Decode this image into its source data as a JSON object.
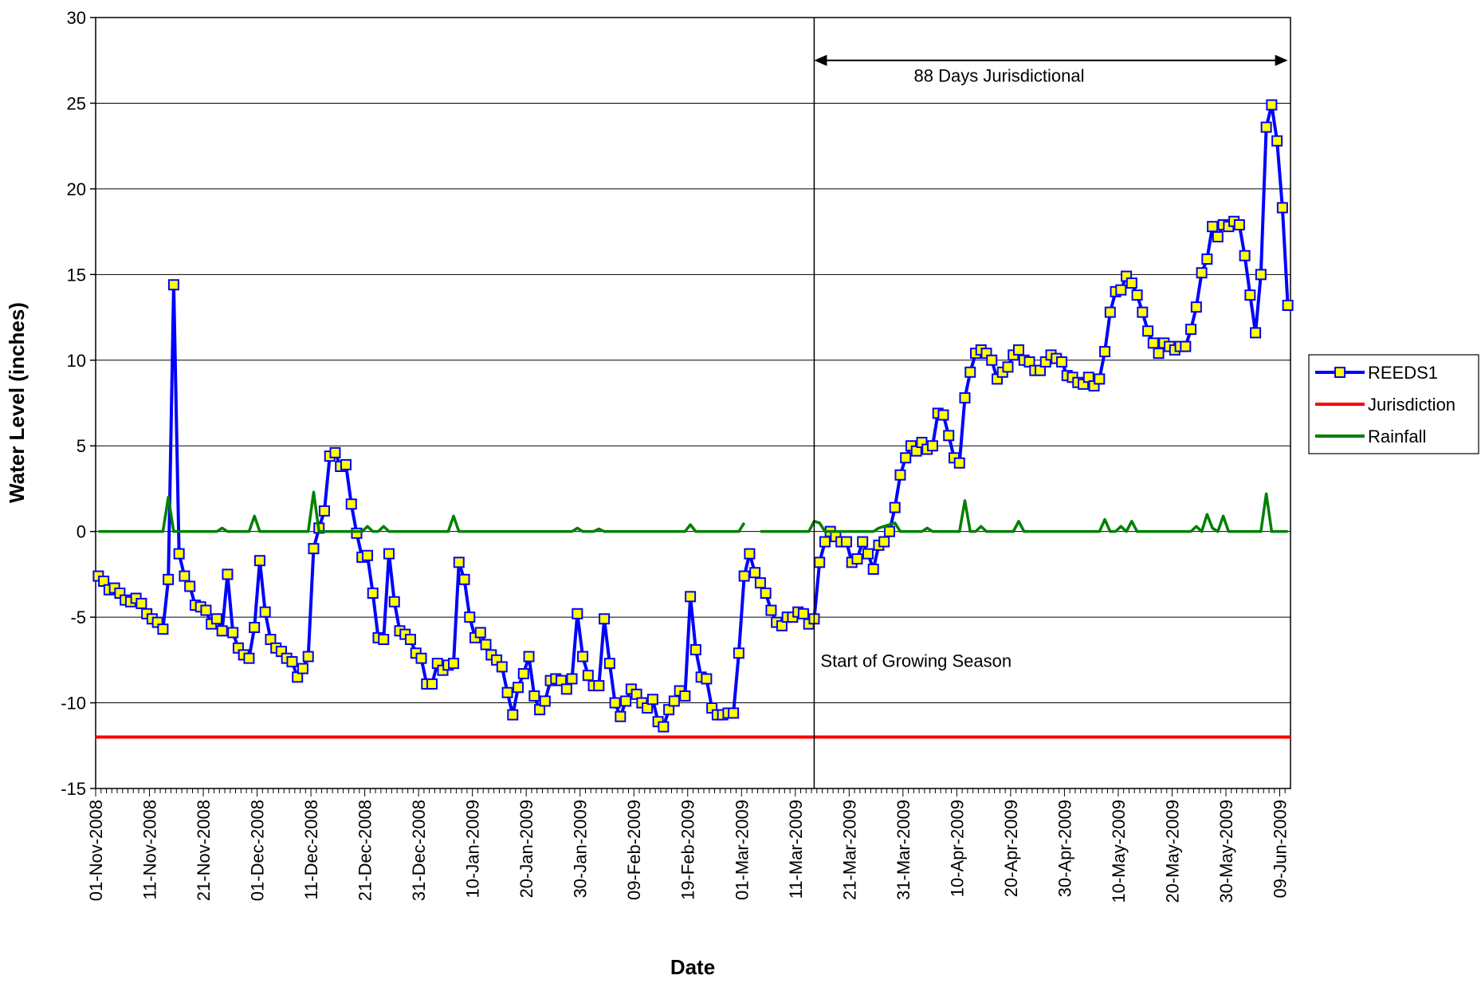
{
  "chart_data": {
    "type": "line",
    "y_label": "Water Level (inches)",
    "x_label": "Date",
    "categories": [
      "01-Nov-2008",
      null,
      null,
      null,
      null,
      null,
      null,
      null,
      null,
      null,
      "11-Nov-2008",
      null,
      null,
      null,
      null,
      null,
      null,
      null,
      null,
      null,
      "21-Nov-2008",
      null,
      null,
      null,
      null,
      null,
      null,
      null,
      null,
      null,
      "01-Dec-2008",
      null,
      null,
      null,
      null,
      null,
      null,
      null,
      null,
      null,
      "11-Dec-2008",
      null,
      null,
      null,
      null,
      null,
      null,
      null,
      null,
      null,
      "21-Dec-2008",
      null,
      null,
      null,
      null,
      null,
      null,
      null,
      null,
      null,
      "31-Dec-2008",
      null,
      null,
      null,
      null,
      null,
      null,
      null,
      null,
      null,
      "10-Jan-2009",
      null,
      null,
      null,
      null,
      null,
      null,
      null,
      null,
      null,
      "20-Jan-2009",
      null,
      null,
      null,
      null,
      null,
      null,
      null,
      null,
      null,
      "30-Jan-2009",
      null,
      null,
      null,
      null,
      null,
      null,
      null,
      null,
      null,
      "09-Feb-2009",
      null,
      null,
      null,
      null,
      null,
      null,
      null,
      null,
      null,
      "19-Feb-2009",
      null,
      null,
      null,
      null,
      null,
      null,
      null,
      null,
      null,
      "01-Mar-2009",
      null,
      null,
      null,
      null,
      null,
      null,
      null,
      null,
      null,
      "11-Mar-2009",
      null,
      null,
      null,
      null,
      null,
      null,
      null,
      null,
      null,
      "21-Mar-2009",
      null,
      null,
      null,
      null,
      null,
      null,
      null,
      null,
      null,
      "31-Mar-2009",
      null,
      null,
      null,
      null,
      null,
      null,
      null,
      null,
      null,
      "10-Apr-2009",
      null,
      null,
      null,
      null,
      null,
      null,
      null,
      null,
      null,
      "20-Apr-2009",
      null,
      null,
      null,
      null,
      null,
      null,
      null,
      null,
      null,
      "30-Apr-2009",
      null,
      null,
      null,
      null,
      null,
      null,
      null,
      null,
      null,
      "10-May-2009",
      null,
      null,
      null,
      null,
      null,
      null,
      null,
      null,
      null,
      "20-May-2009",
      null,
      null,
      null,
      null,
      null,
      null,
      null,
      null,
      null,
      "30-May-2009",
      null,
      null,
      null,
      null,
      null,
      null,
      null,
      null,
      null,
      "09-Jun-2009",
      null
    ],
    "series": [
      {
        "name": "REEDS1",
        "color": "#0000ff",
        "marker_color": "#ffff00",
        "values": [
          -2.6,
          -2.9,
          -3.4,
          -3.3,
          -3.6,
          -4.0,
          -4.1,
          -3.9,
          -4.2,
          -4.8,
          -5.1,
          -5.3,
          -5.7,
          -2.8,
          14.4,
          -1.3,
          -2.6,
          -3.2,
          -4.3,
          -4.4,
          -4.6,
          -5.4,
          -5.1,
          -5.8,
          -2.5,
          -5.9,
          -6.8,
          -7.2,
          -7.4,
          -5.6,
          -1.7,
          -4.7,
          -6.3,
          -6.8,
          -7.0,
          -7.4,
          -7.6,
          -8.5,
          -8.0,
          -7.3,
          -1.0,
          0.2,
          1.2,
          4.4,
          4.6,
          3.8,
          3.9,
          1.6,
          -0.1,
          -1.5,
          -1.4,
          -3.6,
          -6.2,
          -6.3,
          -1.3,
          -4.1,
          -5.8,
          -6.0,
          -6.3,
          -7.1,
          -7.4,
          -8.9,
          -8.9,
          -7.7,
          -8.1,
          -7.8,
          -7.7,
          -1.8,
          -2.8,
          -5.0,
          -6.2,
          -5.9,
          -6.6,
          -7.2,
          -7.5,
          -7.9,
          -9.4,
          -10.7,
          -9.1,
          -8.3,
          -7.3,
          -9.6,
          -10.4,
          -9.9,
          -8.7,
          -8.6,
          -8.7,
          -9.2,
          -8.6,
          -4.8,
          -7.3,
          -8.4,
          -9.0,
          -9.0,
          -5.1,
          -7.7,
          -10.0,
          -10.8,
          -9.9,
          -9.2,
          -9.5,
          -10.0,
          -10.3,
          -9.8,
          -11.1,
          -11.4,
          -10.4,
          -9.9,
          -9.3,
          -9.6,
          -3.8,
          -6.9,
          -8.5,
          -8.6,
          -10.3,
          -10.7,
          -10.7,
          -10.6,
          -10.6,
          -7.1,
          -2.6,
          -1.3,
          -2.4,
          -3.0,
          -3.6,
          -4.6,
          -5.3,
          -5.5,
          -5.0,
          -5.0,
          -4.7,
          -4.8,
          -5.4,
          -5.1,
          -1.8,
          -0.6,
          0.0,
          -0.3,
          -0.6,
          -0.6,
          -1.8,
          -1.6,
          -0.6,
          -1.3,
          -2.2,
          -0.8,
          -0.6,
          0.0,
          1.4,
          3.3,
          4.3,
          5.0,
          4.7,
          5.2,
          4.8,
          5.0,
          6.9,
          6.8,
          5.6,
          4.3,
          4.0,
          7.8,
          9.3,
          10.4,
          10.6,
          10.4,
          10.0,
          8.9,
          9.3,
          9.6,
          10.3,
          10.6,
          10.0,
          9.9,
          9.4,
          9.4,
          9.9,
          10.3,
          10.1,
          9.9,
          9.1,
          9.0,
          8.7,
          8.6,
          9.0,
          8.5,
          8.9,
          10.5,
          12.8,
          14.0,
          14.1,
          14.9,
          14.5,
          13.8,
          12.8,
          11.7,
          11.0,
          10.4,
          11.0,
          10.8,
          10.6,
          10.8,
          10.8,
          11.8,
          13.1,
          15.1,
          15.9,
          17.8,
          17.2,
          17.9,
          17.8,
          18.1,
          17.9,
          16.1,
          13.8,
          11.6,
          15.0,
          23.6,
          24.9,
          22.8,
          18.9,
          13.2
        ]
      },
      {
        "name": "Jurisdiction",
        "color": "#ff0000",
        "value": -12
      },
      {
        "name": "Rainfall",
        "color": "#008000",
        "values": [
          0,
          0,
          0,
          0,
          0,
          0,
          0,
          0,
          0,
          0,
          0,
          0,
          0,
          2.0,
          0,
          0,
          0,
          0,
          0,
          0,
          0,
          0,
          0,
          0.2,
          0,
          0,
          0,
          0,
          0,
          0.9,
          0,
          0,
          0,
          0,
          0,
          0,
          0,
          0,
          0,
          0,
          2.3,
          0,
          0,
          0,
          0,
          0,
          0,
          0,
          0,
          0,
          0.3,
          0,
          0,
          0.3,
          0,
          0,
          0,
          0,
          0,
          0,
          0,
          0,
          0,
          0,
          0,
          0,
          0.9,
          0,
          0,
          0,
          0,
          0,
          0,
          0,
          0,
          0,
          0,
          0,
          0,
          0,
          0,
          0,
          0,
          0,
          0,
          0,
          0,
          0,
          0,
          0.2,
          0,
          0,
          0,
          0.15,
          0,
          0,
          0,
          0,
          0,
          0,
          0,
          0,
          0,
          0,
          0,
          0,
          0,
          0,
          0,
          0,
          0.4,
          0,
          0,
          0,
          0,
          0,
          0,
          0,
          0,
          0,
          0.5,
          null,
          null,
          0,
          0,
          0,
          0,
          0,
          0,
          0,
          0,
          0,
          0,
          0.6,
          0.5,
          0,
          0,
          0,
          0,
          0,
          0,
          0,
          0,
          0,
          0,
          0.2,
          0.3,
          0.4,
          0.5,
          0,
          0,
          0,
          0,
          0,
          0.2,
          0,
          0,
          0,
          0,
          0,
          0,
          1.8,
          0,
          0,
          0.3,
          0,
          0,
          0,
          0,
          0,
          0,
          0.6,
          0,
          0,
          0,
          0,
          0,
          0,
          0,
          0,
          0,
          0,
          0,
          0,
          0,
          0,
          0,
          0.7,
          0,
          0,
          0.3,
          0,
          0.6,
          0,
          0,
          0,
          0,
          0,
          0,
          0,
          0,
          0,
          0,
          0,
          0.3,
          0,
          1.0,
          0.2,
          0,
          0.9,
          0,
          0,
          0,
          0,
          0,
          0,
          0,
          2.2,
          0,
          0,
          0,
          0
        ]
      }
    ],
    "ylim": [
      -15,
      30
    ],
    "yticks": [
      -15,
      -10,
      -5,
      0,
      5,
      10,
      15,
      20,
      25,
      30
    ],
    "grid": true,
    "legend": "right",
    "annotations": [
      {
        "text": "Start of Growing Season",
        "x": 133
      },
      {
        "text": "88 Days Jurisdictional",
        "x": [
          133,
          221
        ]
      }
    ]
  }
}
